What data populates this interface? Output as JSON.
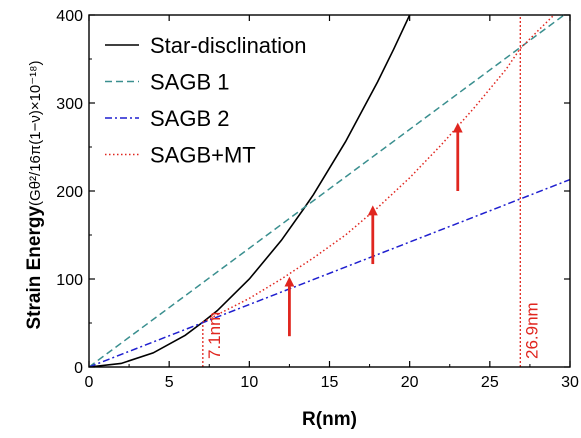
{
  "chart_data": {
    "type": "line",
    "xlabel": "R(nm)",
    "ylabel": "Strain Energy",
    "ylabel_unit": "(Gθ²/16π(1−ν)×10⁻¹⁸)",
    "xlim": [
      0,
      30
    ],
    "ylim": [
      0,
      400
    ],
    "x_ticks": [
      0,
      5,
      10,
      15,
      20,
      25,
      30
    ],
    "y_ticks": [
      0,
      100,
      200,
      300,
      400
    ],
    "grid": false,
    "legend_position": "top-left",
    "series": [
      {
        "name": "Star-disclination",
        "style": "solid",
        "color": "#000000",
        "x": [
          0,
          2,
          4,
          6,
          7.1,
          8,
          10,
          12,
          13.4,
          14,
          16,
          18,
          19,
          20
        ],
        "y": [
          0,
          4,
          16,
          36,
          51,
          64,
          100,
          144,
          180,
          196,
          256,
          324,
          361,
          400
        ]
      },
      {
        "name": "SAGB 1",
        "style": "dashed",
        "color": "#3a8f8f",
        "x": [
          0,
          30
        ],
        "y": [
          0,
          405
        ]
      },
      {
        "name": "SAGB 2",
        "style": "dash-dot",
        "color": "#1f1fcf",
        "x": [
          0,
          30
        ],
        "y": [
          0,
          213
        ]
      },
      {
        "name": "SAGB+MT",
        "style": "dotted",
        "color": "#e0261f",
        "x": [
          7.1,
          10,
          12,
          14,
          16,
          18,
          20,
          22,
          24,
          26,
          26.9,
          28,
          30
        ],
        "y": [
          51,
          78,
          100,
          124,
          150,
          181,
          215,
          253,
          294,
          338,
          362,
          382,
          418
        ]
      }
    ],
    "vertical_lines": [
      {
        "x": 7.1,
        "y_top": 51,
        "label": "7.1nm",
        "color": "#e0261f"
      },
      {
        "x": 26.9,
        "y_top": 400,
        "label": "26.9nm",
        "color": "#e0261f"
      }
    ],
    "arrows": [
      {
        "x": 12.5,
        "y_from": 35,
        "y_to": 97,
        "color": "#e0261f"
      },
      {
        "x": 17.7,
        "y_from": 117,
        "y_to": 178,
        "color": "#e0261f"
      },
      {
        "x": 23,
        "y_from": 200,
        "y_to": 272,
        "color": "#e0261f"
      }
    ]
  }
}
